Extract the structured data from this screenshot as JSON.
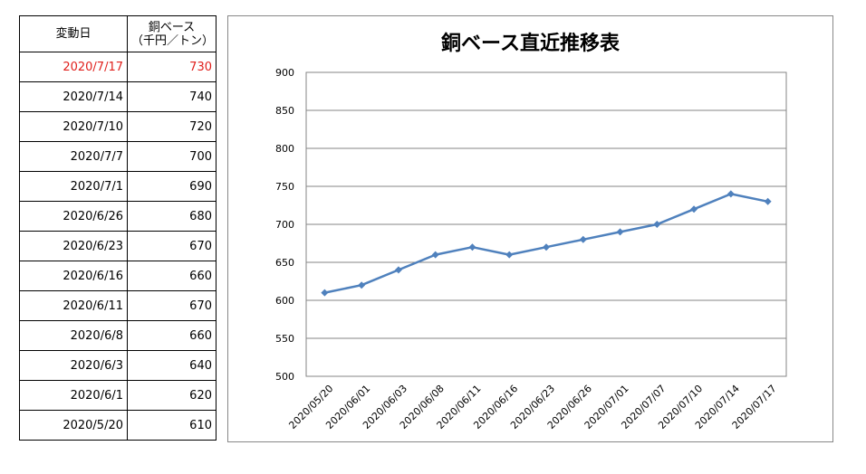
{
  "table": {
    "header": {
      "date": "変動日",
      "price_line1": "銅ベース",
      "price_line2": "（千円／トン）"
    },
    "rows": [
      {
        "date": "2020/7/17",
        "price": "730",
        "highlight": true
      },
      {
        "date": "2020/7/14",
        "price": "740"
      },
      {
        "date": "2020/7/10",
        "price": "720"
      },
      {
        "date": "2020/7/7",
        "price": "700"
      },
      {
        "date": "2020/7/1",
        "price": "690"
      },
      {
        "date": "2020/6/26",
        "price": "680"
      },
      {
        "date": "2020/6/23",
        "price": "670"
      },
      {
        "date": "2020/6/16",
        "price": "660"
      },
      {
        "date": "2020/6/11",
        "price": "670"
      },
      {
        "date": "2020/6/8",
        "price": "660"
      },
      {
        "date": "2020/6/3",
        "price": "640"
      },
      {
        "date": "2020/6/1",
        "price": "620"
      },
      {
        "date": "2020/5/20",
        "price": "610"
      }
    ]
  },
  "colors": {
    "series": "#4f81bd",
    "highlight_text": "#e0201c",
    "grid": "#868686"
  },
  "chart_data": {
    "type": "line",
    "title": "銅ベース直近推移表",
    "xlabel": "",
    "ylabel": "",
    "categories": [
      "2020/05/20",
      "2020/06/01",
      "2020/06/03",
      "2020/06/08",
      "2020/06/11",
      "2020/06/16",
      "2020/06/23",
      "2020/06/26",
      "2020/07/01",
      "2020/07/07",
      "2020/07/10",
      "2020/07/14",
      "2020/07/17"
    ],
    "series": [
      {
        "values": [
          610,
          620,
          640,
          660,
          670,
          660,
          670,
          680,
          690,
          700,
          720,
          740,
          730
        ]
      }
    ],
    "ylim": [
      500,
      900
    ],
    "yticks": [
      500,
      550,
      600,
      650,
      700,
      750,
      800,
      850,
      900
    ],
    "grid": true,
    "legend": "none",
    "marker": "diamond"
  }
}
